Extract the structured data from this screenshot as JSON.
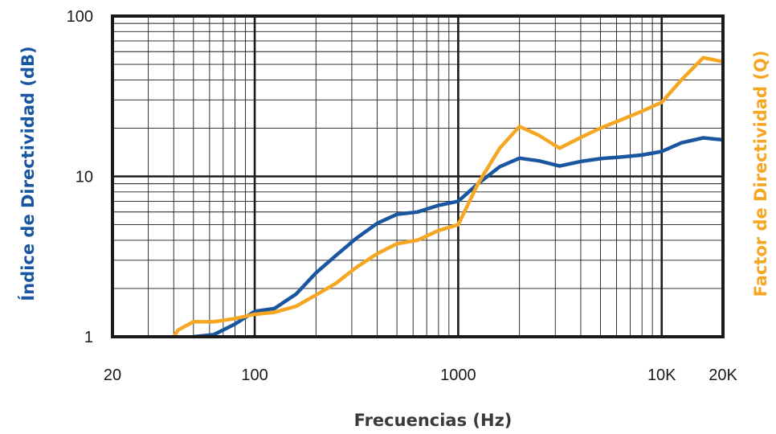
{
  "chart_data": {
    "type": "line",
    "x_scale": "log",
    "y_scale": "log",
    "xlim": [
      20,
      20000
    ],
    "ylim": [
      1,
      100
    ],
    "grid": true,
    "xlabel": "Frecuencias (Hz)",
    "ylabel_left": "Índice de Directividad (dB)",
    "ylabel_right": "Factor de Directividad (Q)",
    "x_ticks": [
      {
        "value": 20,
        "label": "20"
      },
      {
        "value": 100,
        "label": "100"
      },
      {
        "value": 1000,
        "label": "1000"
      },
      {
        "value": 10000,
        "label": "10K"
      },
      {
        "value": 20000,
        "label": "20K"
      }
    ],
    "y_ticks": [
      {
        "value": 1,
        "label": "1"
      },
      {
        "value": 10,
        "label": "10"
      },
      {
        "value": 100,
        "label": "100"
      }
    ],
    "series": [
      {
        "color": "#1a56a0",
        "points": [
          [
            50,
            1.0
          ],
          [
            63,
            1.03
          ],
          [
            80,
            1.2
          ],
          [
            100,
            1.44
          ],
          [
            125,
            1.5
          ],
          [
            160,
            1.85
          ],
          [
            200,
            2.5
          ],
          [
            250,
            3.2
          ],
          [
            315,
            4.1
          ],
          [
            400,
            5.1
          ],
          [
            500,
            5.8
          ],
          [
            630,
            6.0
          ],
          [
            800,
            6.6
          ],
          [
            1000,
            7.0
          ],
          [
            1250,
            9.0
          ],
          [
            1600,
            11.5
          ],
          [
            2000,
            13.0
          ],
          [
            2500,
            12.5
          ],
          [
            3150,
            11.6
          ],
          [
            4000,
            12.4
          ],
          [
            5000,
            12.9
          ],
          [
            6300,
            13.2
          ],
          [
            8000,
            13.6
          ],
          [
            10000,
            14.3
          ],
          [
            12500,
            16.2
          ],
          [
            16000,
            17.4
          ],
          [
            20000,
            16.9
          ]
        ]
      },
      {
        "color": "#f5a623",
        "points": [
          [
            40,
            1.0
          ],
          [
            42,
            1.1
          ],
          [
            50,
            1.24
          ],
          [
            63,
            1.24
          ],
          [
            80,
            1.3
          ],
          [
            100,
            1.38
          ],
          [
            125,
            1.42
          ],
          [
            160,
            1.55
          ],
          [
            200,
            1.82
          ],
          [
            250,
            2.15
          ],
          [
            315,
            2.7
          ],
          [
            400,
            3.3
          ],
          [
            500,
            3.8
          ],
          [
            630,
            4.0
          ],
          [
            800,
            4.6
          ],
          [
            1000,
            5.0
          ],
          [
            1250,
            9.0
          ],
          [
            1600,
            15.0
          ],
          [
            2000,
            20.5
          ],
          [
            2500,
            18.0
          ],
          [
            3150,
            15.0
          ],
          [
            4000,
            17.5
          ],
          [
            5000,
            20.0
          ],
          [
            6300,
            22.5
          ],
          [
            8000,
            25.5
          ],
          [
            10000,
            29.0
          ],
          [
            12500,
            40.0
          ],
          [
            16000,
            55.0
          ],
          [
            20000,
            52.0
          ]
        ]
      }
    ]
  }
}
